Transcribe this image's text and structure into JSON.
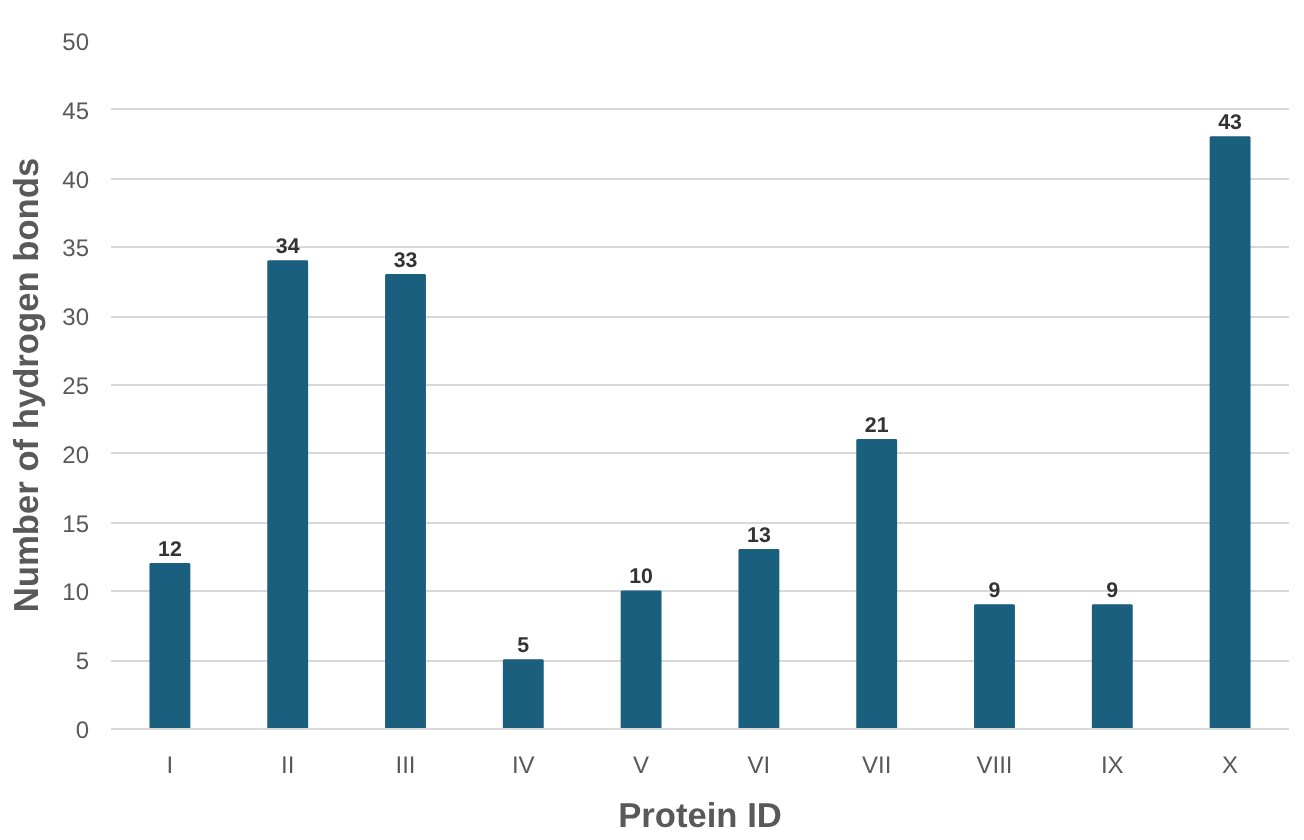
{
  "chart_data": {
    "type": "bar",
    "xlabel": "Protein ID",
    "ylabel": "Number of hydrogen bonds",
    "categories": [
      "I",
      "II",
      "III",
      "IV",
      "V",
      "VI",
      "VII",
      "VIII",
      "IX",
      "X"
    ],
    "values": [
      12,
      34,
      33,
      5,
      10,
      13,
      21,
      9,
      9,
      43
    ],
    "color": "#1b5f7f",
    "ylim": [
      0,
      50
    ],
    "yticks": [
      0,
      5,
      10,
      15,
      20,
      25,
      30,
      35,
      40,
      45,
      50
    ],
    "grid": "y",
    "data_labels": true
  }
}
